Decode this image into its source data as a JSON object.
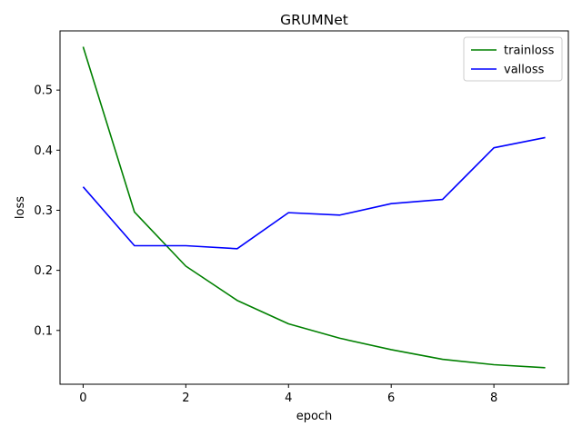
{
  "chart_data": {
    "type": "line",
    "title": "GRUMNet",
    "xlabel": "epoch",
    "ylabel": "loss",
    "x": [
      0,
      1,
      2,
      3,
      4,
      5,
      6,
      7,
      8,
      9
    ],
    "xlim": [
      -0.45,
      9.45
    ],
    "ylim": [
      0.0105,
      0.5985
    ],
    "xticks": [
      0,
      2,
      4,
      6,
      8
    ],
    "yticks": [
      0.1,
      0.2,
      0.3,
      0.4,
      0.5
    ],
    "xtick_labels": [
      "0",
      "2",
      "4",
      "6",
      "8"
    ],
    "ytick_labels": [
      "0.1",
      "0.2",
      "0.3",
      "0.4",
      "0.5"
    ],
    "grid": false,
    "legend_position": "top-right",
    "series": [
      {
        "name": "trainloss",
        "color": "#008000",
        "values": [
          0.572,
          0.297,
          0.207,
          0.15,
          0.111,
          0.087,
          0.068,
          0.052,
          0.043,
          0.038
        ]
      },
      {
        "name": "valloss",
        "color": "#0000ff",
        "values": [
          0.339,
          0.241,
          0.241,
          0.236,
          0.296,
          0.292,
          0.311,
          0.318,
          0.404,
          0.421
        ]
      }
    ]
  }
}
